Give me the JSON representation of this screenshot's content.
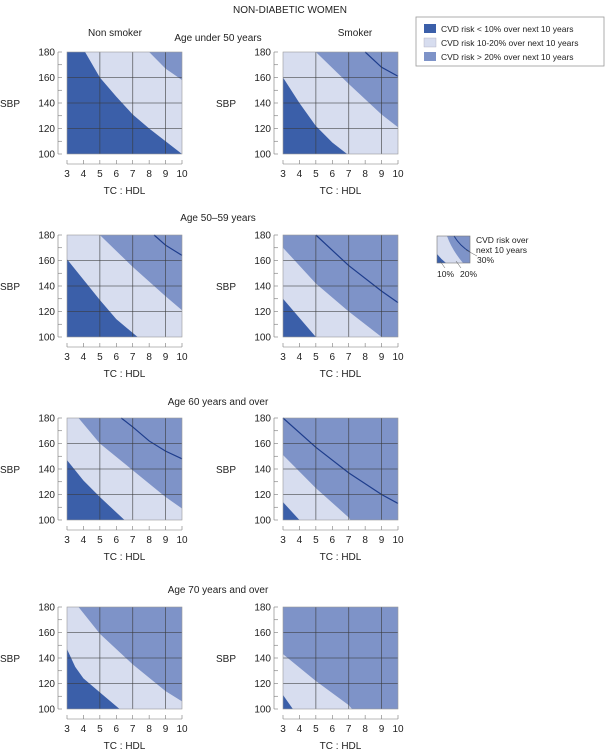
{
  "chart_data": {
    "type": "area",
    "title": "NON-DIABETIC WOMEN",
    "xlabel": "TC : HDL",
    "ylabel": "SBP",
    "xlim": [
      3,
      10
    ],
    "ylim": [
      100,
      180
    ],
    "x_ticks": [
      3,
      4,
      5,
      6,
      7,
      8,
      9,
      10
    ],
    "y_ticks": [
      100,
      120,
      140,
      160,
      180
    ],
    "grid_x": [
      5,
      7,
      9
    ],
    "grid_y": [
      120,
      140,
      160
    ],
    "column_labels": [
      "Non smoker",
      "Smoker"
    ],
    "colors": {
      "low": "#3b5fa9",
      "mid": "#d7ddef",
      "high": "#7e93c8",
      "line30": "#1e3d8c",
      "grid": "#3a3a3a"
    },
    "legend": {
      "placement": "top-right",
      "items": [
        {
          "label": "CVD risk < 10% over next 10 years",
          "color": "#3b5fa9"
        },
        {
          "label": "CVD risk 10-20% over next 10 years",
          "color": "#d7ddef"
        },
        {
          "label": "CVD risk > 20% over next 10 years",
          "color": "#7e93c8"
        }
      ]
    },
    "inset_key": {
      "title": "CVD risk over next 10 years",
      "labels": [
        "10%",
        "20%",
        "30%"
      ]
    },
    "rows": [
      {
        "label": "Age under 50 years",
        "panels": [
          {
            "group": "Non smoker",
            "b10": [
              [
                4.1,
                180
              ],
              [
                5,
                160
              ],
              [
                6,
                145
              ],
              [
                7,
                131
              ],
              [
                8,
                120
              ],
              [
                9,
                110
              ],
              [
                10,
                100
              ]
            ],
            "b20": [
              [
                8.0,
                180
              ],
              [
                9,
                167
              ],
              [
                10,
                158
              ]
            ],
            "b30": []
          },
          {
            "group": "Smoker",
            "b10": [
              [
                3,
                160
              ],
              [
                4,
                140
              ],
              [
                5,
                122
              ],
              [
                6,
                109
              ],
              [
                6.9,
                100
              ]
            ],
            "b20": [
              [
                5,
                180
              ],
              [
                7,
                155
              ],
              [
                9,
                131
              ],
              [
                10,
                121
              ]
            ],
            "b30": [
              [
                8,
                180
              ],
              [
                9,
                168
              ],
              [
                10,
                161
              ]
            ]
          }
        ]
      },
      {
        "label": "Age 50–59 years",
        "panels": [
          {
            "group": "Non smoker",
            "b10": [
              [
                3,
                161
              ],
              [
                4,
                145
              ],
              [
                5,
                129
              ],
              [
                6,
                114
              ],
              [
                7.3,
                100
              ]
            ],
            "b20": [
              [
                5,
                180
              ],
              [
                7,
                155
              ],
              [
                9,
                132
              ],
              [
                10,
                121
              ]
            ],
            "b30": [
              [
                8.3,
                180
              ],
              [
                9,
                172
              ],
              [
                10,
                164
              ]
            ]
          },
          {
            "group": "Smoker",
            "b10": [
              [
                3,
                130
              ],
              [
                4,
                115
              ],
              [
                5,
                100
              ]
            ],
            "b20": [
              [
                3,
                170
              ],
              [
                5,
                142
              ],
              [
                7,
                120
              ],
              [
                9,
                100
              ]
            ],
            "b30": [
              [
                5,
                180
              ],
              [
                7,
                156
              ],
              [
                9,
                136
              ],
              [
                10,
                127
              ]
            ]
          }
        ]
      },
      {
        "label": "Age 60 years and over",
        "panels": [
          {
            "group": "Non smoker",
            "b10": [
              [
                3,
                147
              ],
              [
                4,
                131
              ],
              [
                5,
                118
              ],
              [
                6,
                106
              ],
              [
                6.5,
                100
              ]
            ],
            "b20": [
              [
                3.7,
                180
              ],
              [
                5,
                160
              ],
              [
                7,
                139
              ],
              [
                9,
                118
              ],
              [
                10,
                109
              ]
            ],
            "b30": [
              [
                6.3,
                180
              ],
              [
                7,
                173
              ],
              [
                8,
                162
              ],
              [
                9,
                154
              ],
              [
                10,
                148
              ]
            ]
          },
          {
            "group": "Smoker",
            "b10": [
              [
                3,
                114
              ],
              [
                4,
                100
              ]
            ],
            "b20": [
              [
                3,
                151
              ],
              [
                5,
                125
              ],
              [
                7,
                102
              ],
              [
                7.1,
                100
              ]
            ],
            "b30": [
              [
                3,
                180
              ],
              [
                5,
                157
              ],
              [
                7,
                137
              ],
              [
                9,
                120
              ],
              [
                10,
                113
              ]
            ]
          }
        ]
      },
      {
        "label": "Age 70 years and over",
        "panels": [
          {
            "group": "Non smoker",
            "b10": [
              [
                3,
                147
              ],
              [
                3.5,
                133
              ],
              [
                4,
                124
              ],
              [
                5,
                113
              ],
              [
                6.2,
                100
              ]
            ],
            "b20": [
              [
                3.7,
                180
              ],
              [
                5,
                159
              ],
              [
                7,
                135
              ],
              [
                9,
                114
              ],
              [
                10,
                106
              ]
            ],
            "b30": []
          },
          {
            "group": "Smoker",
            "b10": [
              [
                3,
                111
              ],
              [
                3.6,
                100
              ]
            ],
            "b20": [
              [
                3,
                143
              ],
              [
                5,
                122
              ],
              [
                7,
                103
              ],
              [
                7.2,
                100
              ]
            ],
            "b30": []
          }
        ]
      }
    ]
  }
}
